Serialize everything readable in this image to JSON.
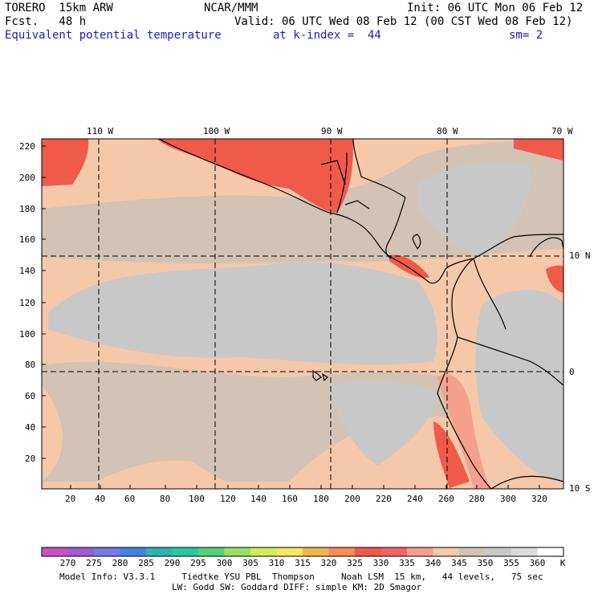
{
  "header": {
    "model": "TORERO  15km ARW",
    "org": "NCAR/MMM",
    "init": "Init: 06 UTC Mon 06 Feb 12",
    "fcst": "Fcst.   48 h",
    "valid": "Valid: 06 UTC Wed 08 Feb 12 (00 CST Wed 08 Feb 12)",
    "field": "Equivalent potential temperature",
    "level": "at k-index =  44",
    "smooth": "sm= 2"
  },
  "map": {
    "lon_labels": [
      "110 W",
      "100 W",
      "90 W",
      "80 W",
      "70 W"
    ],
    "lat_labels": [
      "10 N",
      "0",
      "10 S"
    ],
    "x_ticks": [
      "20",
      "40",
      "60",
      "80",
      "100",
      "120",
      "140",
      "160",
      "180",
      "200",
      "220",
      "240",
      "260",
      "280",
      "300",
      "320"
    ],
    "y_ticks": [
      "220",
      "200",
      "180",
      "160",
      "140",
      "120",
      "100",
      "80",
      "60",
      "40",
      "20"
    ]
  },
  "colorbar": {
    "labels": [
      "270",
      "275",
      "280",
      "285",
      "290",
      "295",
      "300",
      "305",
      "310",
      "315",
      "320",
      "325",
      "330",
      "335",
      "340",
      "345",
      "350",
      "355",
      "360"
    ],
    "unit": "K",
    "colors": [
      "#c850c8",
      "#a05ad2",
      "#7878e6",
      "#4682dc",
      "#28b4b4",
      "#28c8a0",
      "#50d278",
      "#96e164",
      "#d2eb5a",
      "#f5e664",
      "#f5b450",
      "#f58c5a",
      "#f05a4b",
      "#f06464",
      "#f5a08c",
      "#f5c8aa",
      "#d2c3b4",
      "#c8c8c8",
      "#dcdcdc",
      "#ffffff"
    ]
  },
  "footer": {
    "line1": "Model Info: V3.3.1     Tiedtke YSU PBL  Thompson     Noah LSM  15 km,   44 levels,   75 sec",
    "line2": "LW: Godd SW: Goddard DIFF: simple KM: 2D Smagor"
  }
}
